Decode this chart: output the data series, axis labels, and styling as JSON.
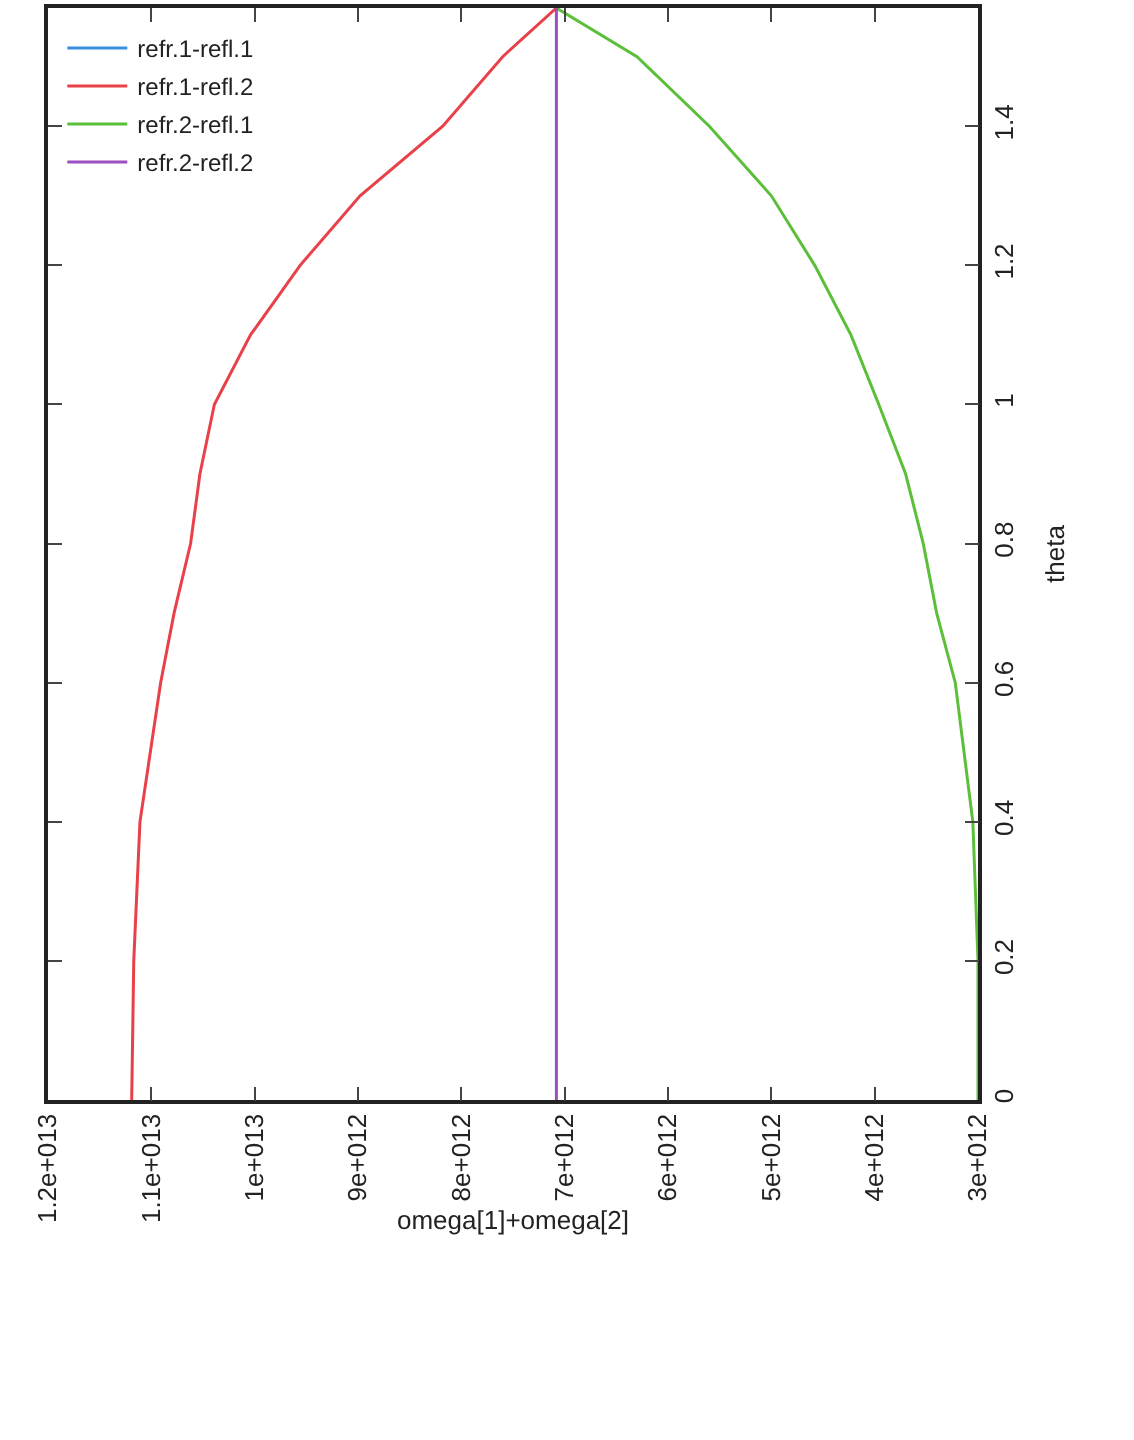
{
  "chart_data": {
    "type": "line",
    "xlabel": "omega[1]+omega[2]",
    "ylabel": "theta",
    "series": [
      {
        "name": "refr.1-refl.1",
        "color": "#3a8fe0",
        "x": [
          null,
          null
        ],
        "values": [
          null,
          null
        ]
      },
      {
        "name": "refr.1-refl.2",
        "color": "#e8414a",
        "x": [
          11190000000000.0,
          11170000000000.0,
          11110000000000.0,
          10910000000000.0,
          10780000000000.0,
          10620000000000.0,
          10530000000000.0,
          10390000000000.0,
          10040000000000.0,
          9560000000000.0,
          8980000000000.0,
          8180000000000.0,
          7600000000000.0,
          7080000000000.0
        ],
        "values": [
          0,
          0.2,
          0.4,
          0.6,
          0.7,
          0.8,
          0.9,
          1.0,
          1.1,
          1.2,
          1.3,
          1.4,
          1.5,
          1.57
        ]
      },
      {
        "name": "refr.2-refl.1",
        "color": "#5cbf3a",
        "x": [
          3000000000000.0,
          3000000000000.0,
          3050000000000.0,
          3220000000000.0,
          3400000000000.0,
          3530000000000.0,
          3700000000000.0,
          3960000000000.0,
          4230000000000.0,
          4580000000000.0,
          5000000000000.0,
          5600000000000.0,
          6300000000000.0,
          7080000000000.0
        ],
        "values": [
          0,
          0.2,
          0.4,
          0.6,
          0.7,
          0.8,
          0.9,
          1.0,
          1.1,
          1.2,
          1.3,
          1.4,
          1.5,
          1.57
        ]
      },
      {
        "name": "refr.2-refl.2",
        "color": "#9b4fc0",
        "x": [
          7080000000000.0,
          7080000000000.0
        ],
        "values": [
          0,
          1.57
        ]
      }
    ],
    "ylim": [
      0,
      1.57
    ],
    "yticks": [
      0,
      0.2,
      0.4,
      0.6,
      0.8,
      1,
      1.2,
      1.4
    ],
    "xlim": [
      12000000000000.0,
      3000000000000.0
    ],
    "xticks": [
      {
        "value": 12000000000000.0,
        "label": "1.2e+013"
      },
      {
        "value": 11000000000000.0,
        "label": "1.1e+013"
      },
      {
        "value": 10000000000000.0,
        "label": "1e+013"
      },
      {
        "value": 9000000000000.0,
        "label": "9e+012"
      },
      {
        "value": 8000000000000.0,
        "label": "8e+012"
      },
      {
        "value": 7000000000000.0,
        "label": "7e+012"
      },
      {
        "value": 6000000000000.0,
        "label": "6e+012"
      },
      {
        "value": 5000000000000.0,
        "label": "5e+012"
      },
      {
        "value": 4000000000000.0,
        "label": "4e+012"
      },
      {
        "value": 3000000000000.0,
        "label": "3e+012"
      }
    ],
    "grid": false,
    "legend": "top left",
    "marker": "none",
    "line_style": "solid"
  }
}
